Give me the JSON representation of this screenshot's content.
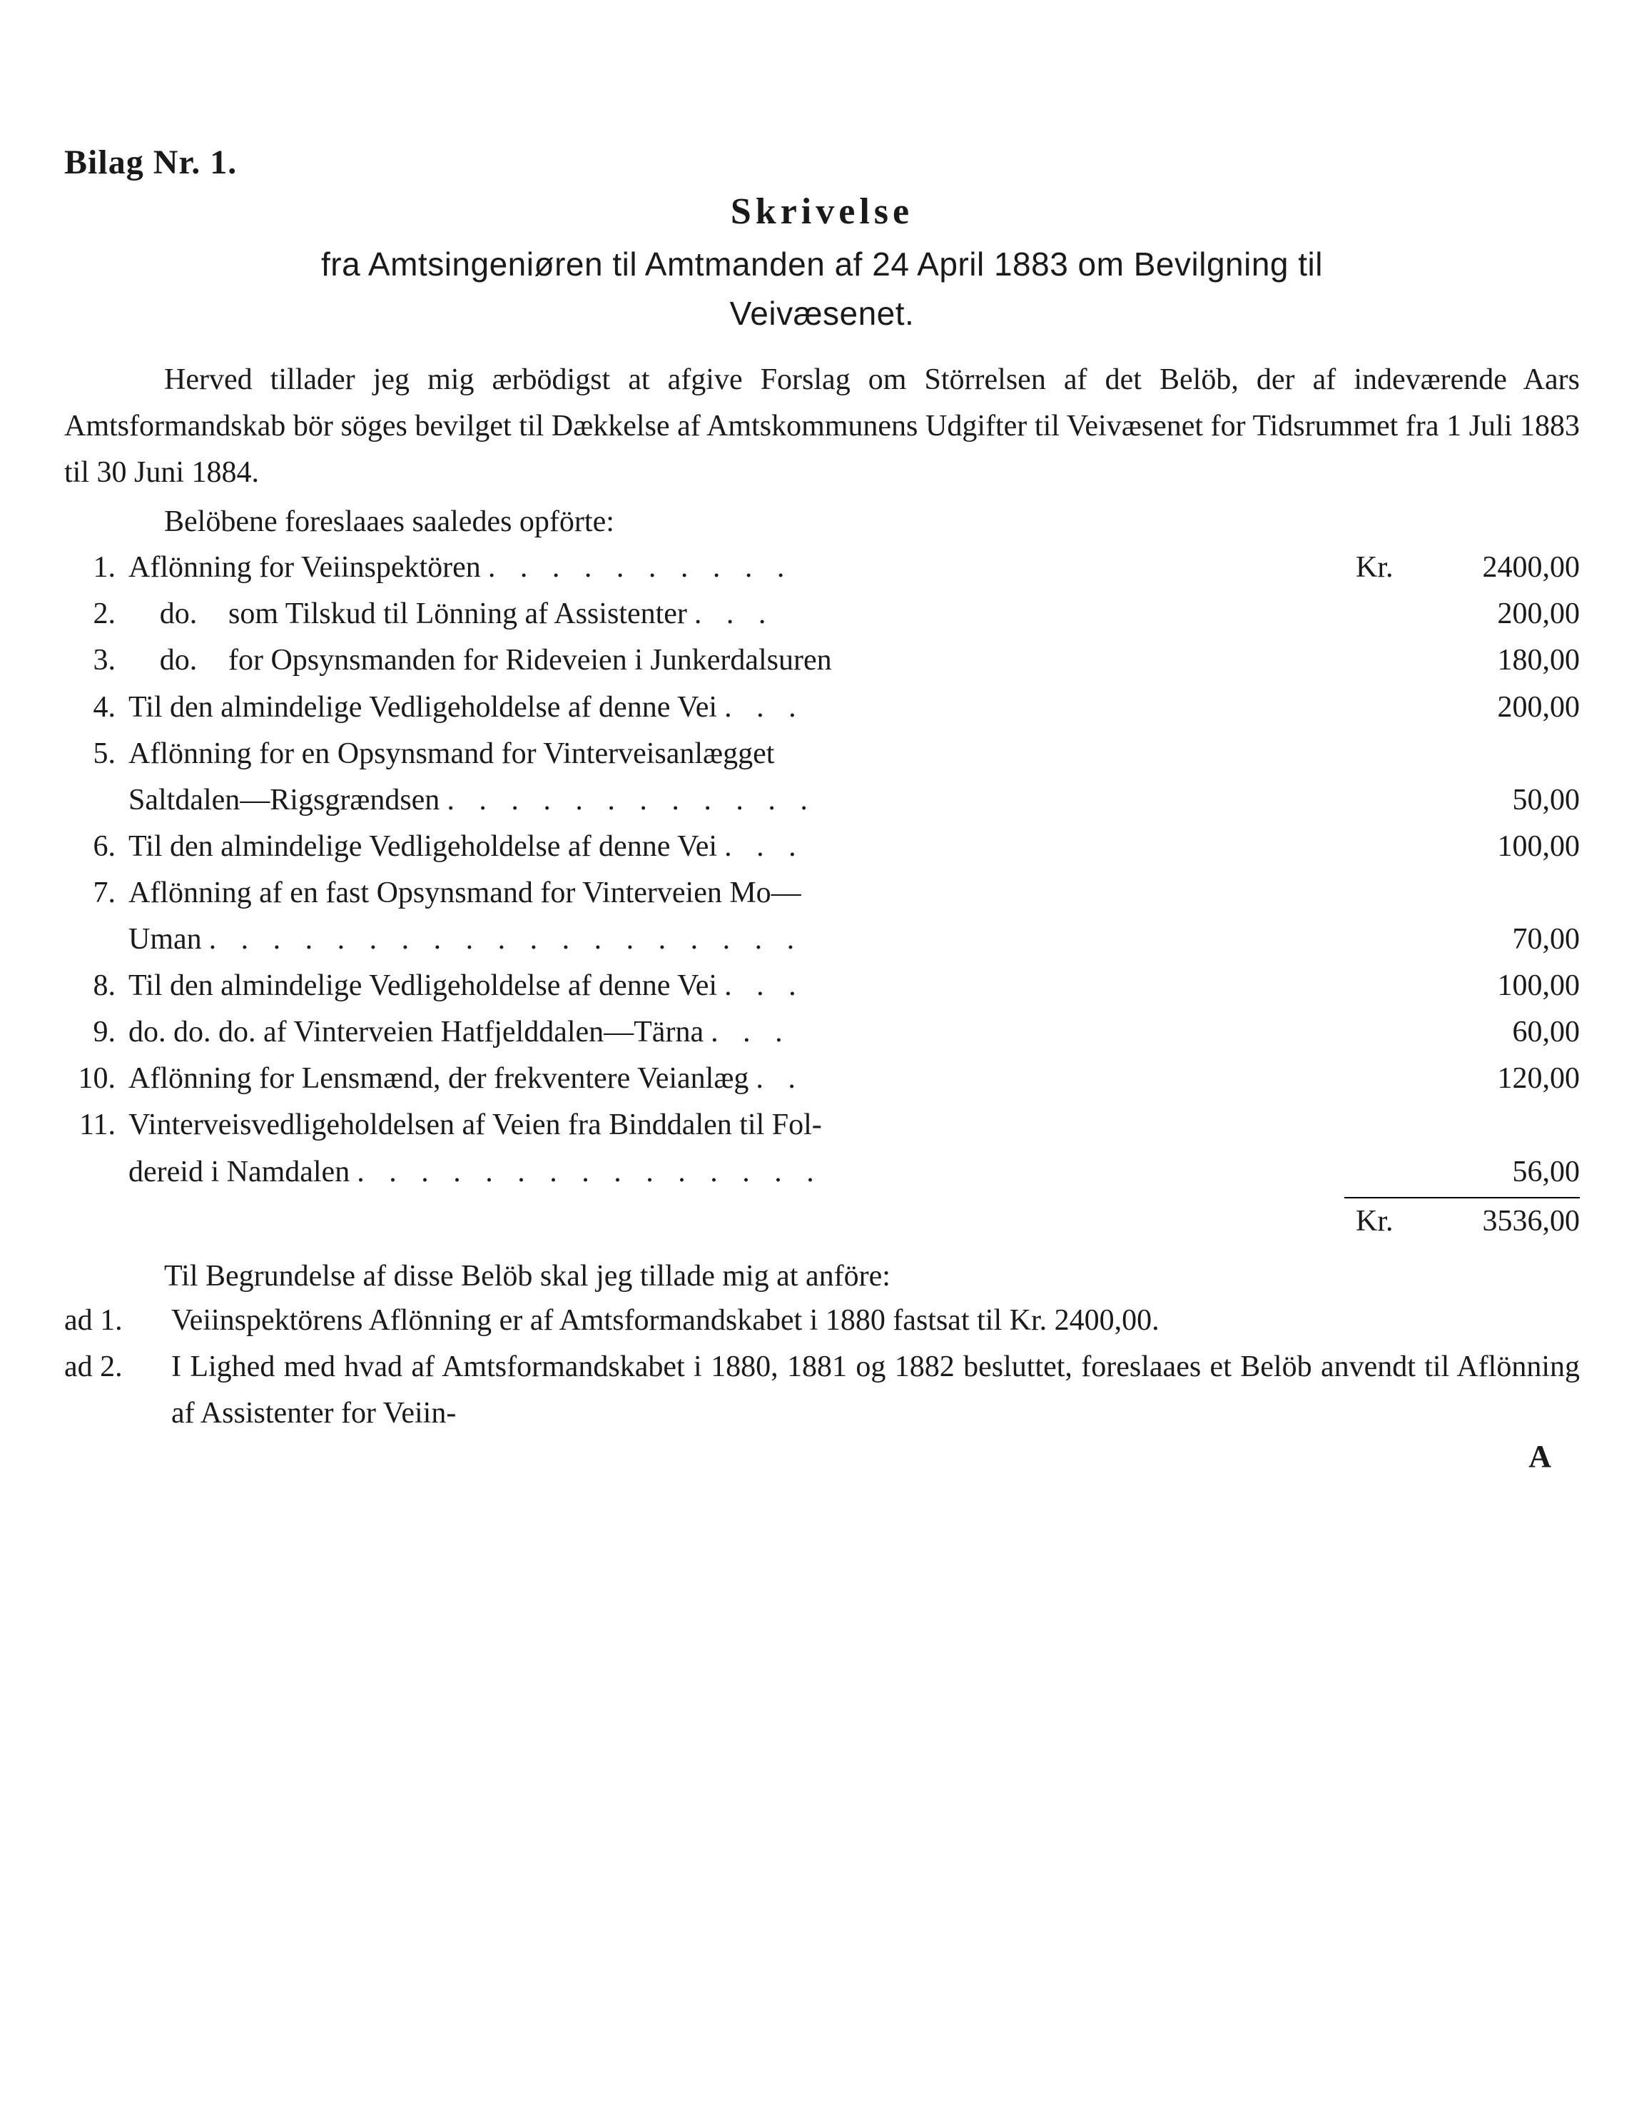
{
  "bilag_heading": "Bilag Nr. 1.",
  "skrivelse_title": "Skrivelse",
  "subtitle_line1": "fra Amtsingeniøren til Amtmanden af 24 April 1883 om Bevilgning til",
  "subtitle_line2": "Veivæsenet.",
  "intro": "Herved tillader jeg mig ærbödigst at afgive Forslag om Störrelsen af det Belöb, der af indeværende Aars Amtsformandskab bör söges bevilget til Dækkelse af Amtskommunens Udgifter til Veivæsenet for Tidsrummet fra 1 Juli 1883 til 30 Juni 1884.",
  "list_intro": "Belöbene foreslaaes saaledes opförte:",
  "currency": "Kr.",
  "items": [
    {
      "num": "1.",
      "desc": "Aflönning for Veiinspektören",
      "dots": ". . . . . . . . . .",
      "kr": "Kr.",
      "amount": "2400,00"
    },
    {
      "num": "2.",
      "desc_prefix": "do.",
      "desc_rest": "som Tilskud til Lönning af Assistenter",
      "dots": ". . .",
      "kr": "",
      "amount": "200,00"
    },
    {
      "num": "3.",
      "desc_prefix": "do.",
      "desc_rest": "for Opsynsmanden for Rideveien i Junkerdalsuren",
      "dots": "",
      "kr": "",
      "amount": "180,00"
    },
    {
      "num": "4.",
      "desc": "Til den almindelige Vedligeholdelse af denne Vei",
      "dots": ". . .",
      "kr": "",
      "amount": "200,00"
    },
    {
      "num": "5.",
      "desc": "Aflönning for en Opsynsmand for Vinterveisanlægget",
      "cont": "Saltdalen—Rigsgrændsen",
      "cont_dots": ". . . . . . . . . . . .",
      "kr": "",
      "amount": "50,00"
    },
    {
      "num": "6.",
      "desc": "Til den almindelige Vedligeholdelse af denne Vei",
      "dots": ". . .",
      "kr": "",
      "amount": "100,00"
    },
    {
      "num": "7.",
      "desc": "Aflönning af en fast Opsynsmand for Vinterveien Mo—",
      "cont": "Uman",
      "cont_dots": ". . . . . . . . . . . . . . . . . . .",
      "kr": "",
      "amount": "70,00"
    },
    {
      "num": "8.",
      "desc": "Til den almindelige Vedligeholdelse af denne Vei",
      "dots": ". . .",
      "kr": "",
      "amount": "100,00"
    },
    {
      "num": "9.",
      "desc": "do. do. do. af Vinterveien Hatfjelddalen—Tärna",
      "dots": ". . .",
      "kr": "",
      "amount": "60,00"
    },
    {
      "num": "10.",
      "desc": "Aflönning for Lensmænd, der frekventere Veianlæg",
      "dots": ". .",
      "kr": "",
      "amount": "120,00"
    },
    {
      "num": "11.",
      "desc": "Vinterveisvedligeholdelsen af Veien fra Binddalen til Fol-",
      "cont": "dereid i Namdalen",
      "cont_dots": ". . . . . . . . . . . . . . .",
      "kr": "",
      "amount": "56,00"
    }
  ],
  "total_kr": "Kr.",
  "total_amount": "3536,00",
  "justify_intro": "Til Begrundelse af disse Belöb skal jeg tillade mig at anföre:",
  "ad_items": [
    {
      "label": "ad 1.",
      "text": "Veiinspektörens Aflönning er af Amtsformandskabet i 1880 fastsat til Kr. 2400,00."
    },
    {
      "label": "ad 2.",
      "text": "I Lighed med hvad af Amtsformandskabet i 1880, 1881 og 1882 besluttet, foreslaaes et Belöb anvendt til Aflönning af Assistenter for Veiin-"
    }
  ],
  "page_marker": "A"
}
